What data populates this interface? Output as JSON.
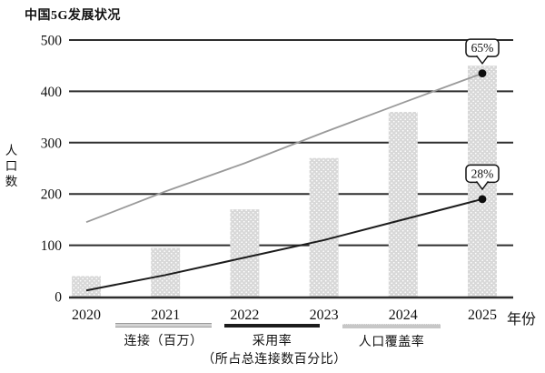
{
  "title": "中国5G发展状况",
  "y_axis_label": "人口数",
  "x_axis_label": "年份",
  "legend": {
    "items": [
      {
        "label": "连接（百万）",
        "sublabel": ""
      },
      {
        "label": "采用率",
        "sublabel": "（所占总连接数百分比）"
      },
      {
        "label": "人口覆盖率",
        "sublabel": ""
      }
    ]
  },
  "chart_data": {
    "type": "bar+line combo",
    "title": "中国5G发展状况",
    "xlabel": "年份",
    "ylabel": "人口数",
    "categories": [
      "2020",
      "2021",
      "2022",
      "2023",
      "2024",
      "2025"
    ],
    "yticks": [
      0,
      100,
      200,
      300,
      400,
      500
    ],
    "ylim": [
      0,
      500
    ],
    "grid": "horizontal solid dark lines",
    "legend_position": "bottom",
    "colors": {
      "bar": "#d8d8d8",
      "grid": "#2e2e2e",
      "adoption_line": "#1c1c1c",
      "coverage_line": "#9a9a9a"
    },
    "series": [
      {
        "name": "连接（百万）",
        "type": "bar",
        "values": [
          40,
          95,
          170,
          270,
          360,
          450
        ]
      },
      {
        "name": "采用率（所占总连接数百分比）",
        "type": "line",
        "color": "#1c1c1c",
        "width": 2,
        "values": [
          12,
          42,
          76,
          110,
          150,
          190
        ],
        "end_annotation": "28%"
      },
      {
        "name": "人口覆盖率",
        "type": "line",
        "color": "#9a9a9a",
        "width": 1.8,
        "values": [
          145,
          205,
          260,
          320,
          378,
          435
        ],
        "end_annotation": "65%"
      }
    ],
    "annotations": [
      {
        "label": "65%",
        "series": "人口覆盖率",
        "category": "2025"
      },
      {
        "label": "28%",
        "series": "采用率（所占总连接数百分比）",
        "category": "2025"
      }
    ]
  }
}
